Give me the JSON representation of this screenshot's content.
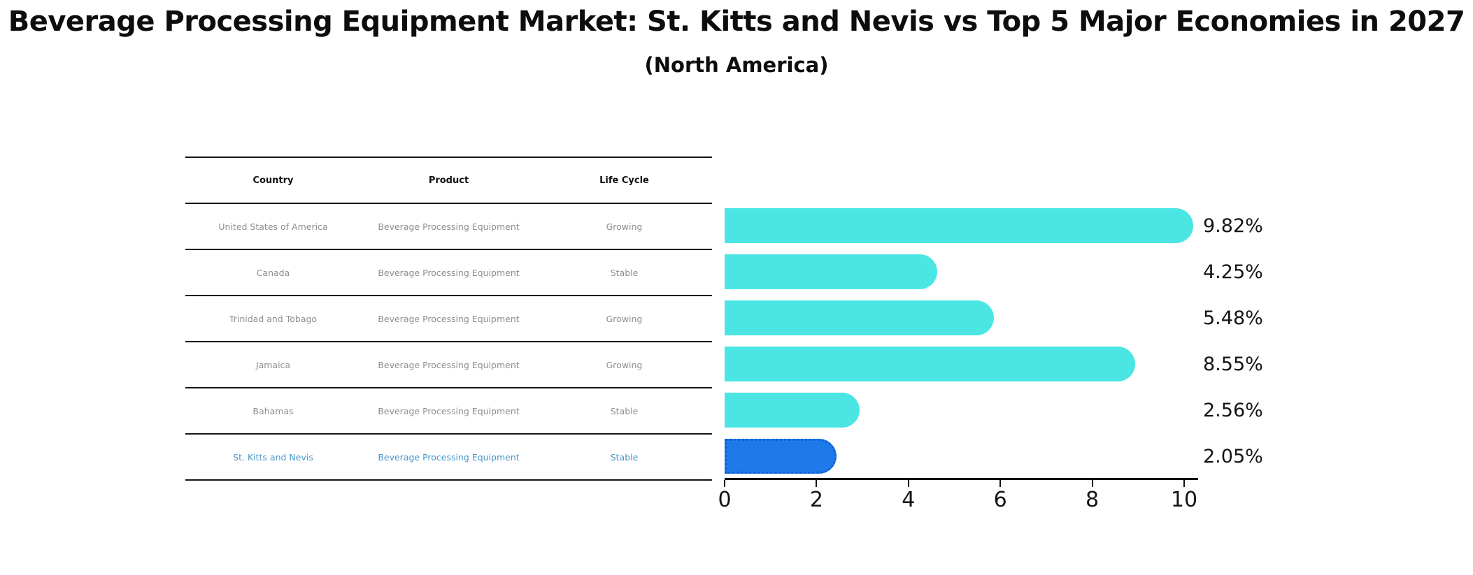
{
  "title": "Beverage Processing Equipment Market: St. Kitts and Nevis vs Top 5 Major Economies in 2027",
  "subtitle": "(North America)",
  "table": {
    "headers": [
      "Country",
      "Product",
      "Life Cycle"
    ],
    "rows": [
      {
        "country": "United States of America",
        "product": "Beverage Processing Equipment",
        "life_cycle": "Growing",
        "highlight": false
      },
      {
        "country": "Canada",
        "product": "Beverage Processing Equipment",
        "life_cycle": "Stable",
        "highlight": false
      },
      {
        "country": "Trinidad and Tobago",
        "product": "Beverage Processing Equipment",
        "life_cycle": "Growing",
        "highlight": false
      },
      {
        "country": "Jamaica",
        "product": "Beverage Processing Equipment",
        "life_cycle": "Growing",
        "highlight": false
      },
      {
        "country": "Bahamas",
        "product": "Beverage Processing Equipment",
        "life_cycle": "Stable",
        "highlight": false
      },
      {
        "country": "St. Kitts and Nevis",
        "product": "Beverage Processing Equipment",
        "life_cycle": "Stable",
        "highlight": true
      }
    ]
  },
  "chart_data": {
    "type": "bar",
    "orientation": "horizontal",
    "title": "Beverage Processing Equipment Market: St. Kitts and Nevis vs Top 5 Major Economies in 2027",
    "subtitle": "(North America)",
    "categories": [
      "United States of America",
      "Canada",
      "Trinidad and Tobago",
      "Jamaica",
      "Bahamas",
      "St. Kitts and Nevis"
    ],
    "values": [
      9.82,
      4.25,
      5.48,
      8.55,
      2.56,
      2.05
    ],
    "value_labels": [
      "9.82%",
      "4.25%",
      "5.48%",
      "8.55%",
      "2.56%",
      "2.05%"
    ],
    "xlabel": "",
    "ylabel": "",
    "xlim": [
      0,
      10.3
    ],
    "xticks": [
      0,
      2,
      4,
      6,
      8,
      10
    ],
    "grid": false,
    "legend": false,
    "bar_color": "#4BE6E4",
    "highlight_color": "#1E7AE8",
    "highlight_index": 5
  },
  "colors": {
    "bar_default": "#4BE6E4",
    "bar_highlight": "#1E7AE8",
    "highlight_text": "#4696c8",
    "row_text": "#8e8e8e",
    "axis": "#111111"
  }
}
